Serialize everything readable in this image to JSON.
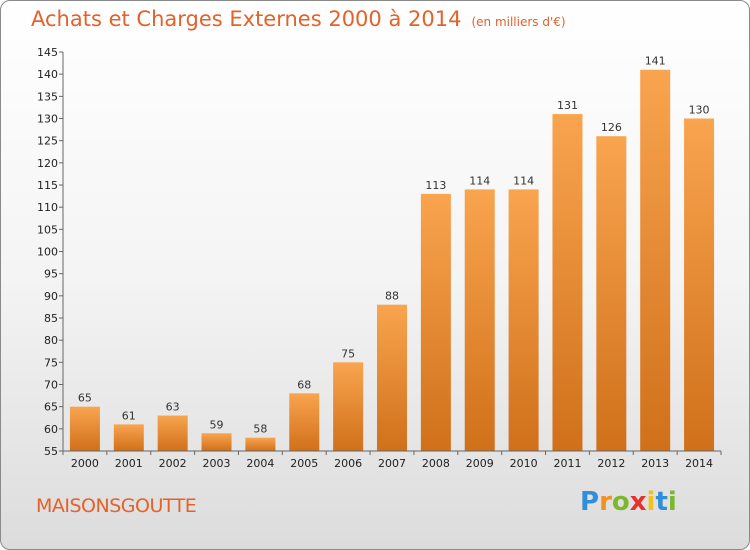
{
  "chart_data": {
    "type": "bar",
    "title": "Achats et Charges Externes 2000 à 2014",
    "subtitle": "(en milliers d'€)",
    "categories": [
      "2000",
      "2001",
      "2002",
      "2003",
      "2004",
      "2005",
      "2006",
      "2007",
      "2008",
      "2009",
      "2010",
      "2011",
      "2012",
      "2013",
      "2014"
    ],
    "values": [
      65,
      61,
      63,
      59,
      58,
      68,
      75,
      88,
      113,
      114,
      114,
      131,
      126,
      141,
      130
    ],
    "ylim": [
      55,
      145
    ],
    "yticks": [
      55,
      60,
      65,
      70,
      75,
      80,
      85,
      90,
      95,
      100,
      105,
      110,
      115,
      120,
      125,
      130,
      135,
      140,
      145
    ],
    "xlabel": "",
    "ylabel": "",
    "grid": false,
    "colors": {
      "bar_top": "#f9a44f",
      "bar_bottom": "#d0701a",
      "title": "#e4612a"
    }
  },
  "footer": {
    "town": "MAISONSGOUTTE",
    "logo_letters": [
      {
        "char": "P",
        "color": "#2f8fd8"
      },
      {
        "char": "r",
        "color": "#f29121"
      },
      {
        "char": "o",
        "color": "#7cb82f"
      },
      {
        "char": "x",
        "color": "#e8312c"
      },
      {
        "char": "i",
        "color": "#f2c21a"
      },
      {
        "char": "t",
        "color": "#2f8fd8"
      },
      {
        "char": "i",
        "color": "#7cb82f"
      }
    ]
  }
}
